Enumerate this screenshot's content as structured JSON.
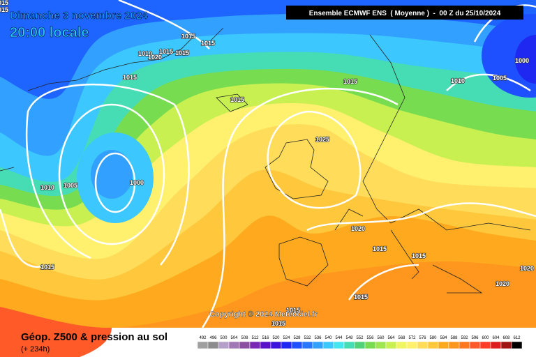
{
  "header": {
    "title": "Dimanche 3 novembre 2024",
    "time": "20:00 locale",
    "model": "Ensemble ECMWF ENS  ( Moyenne )  -  00 Z du 25/10/2024"
  },
  "map": {
    "isobar_labels": [
      1015,
      1015,
      1015,
      1015,
      1010,
      1020,
      1015,
      1015,
      1015,
      1015,
      1015,
      1010,
      1005,
      1000,
      1025,
      1010,
      1005,
      1000,
      1020,
      1015,
      1015,
      1015,
      1020,
      1020,
      1015,
      1015,
      1015
    ],
    "copyright": "Copyright © 2024 Meteociel.fr"
  },
  "footer": {
    "title": "Géop. Z500 & pression au sol",
    "lead_time": "(+ 234h)",
    "scale": {
      "values": [
        492,
        496,
        500,
        504,
        508,
        512,
        516,
        520,
        524,
        528,
        532,
        536,
        540,
        544,
        548,
        552,
        556,
        560,
        564,
        568,
        572,
        576,
        580,
        584,
        588,
        592,
        596,
        600,
        604,
        608,
        612
      ],
      "colors": [
        "#a0a0a0",
        "#8c8c8c",
        "#b4a0c8",
        "#a078b4",
        "#8c50a0",
        "#7828b4",
        "#5a14c8",
        "#3c14dc",
        "#1e28f0",
        "#1e50ff",
        "#2878ff",
        "#32a0ff",
        "#3cc8ff",
        "#46e6f0",
        "#46dcb4",
        "#50d278",
        "#78dc50",
        "#a0e650",
        "#c8f050",
        "#f0f564",
        "#fff06e",
        "#ffdc5a",
        "#ffc83c",
        "#ffaa1e",
        "#ff961e",
        "#ff781e",
        "#ff5a28",
        "#ff3c28",
        "#dc1e1e",
        "#a01414",
        "#000000"
      ]
    }
  }
}
